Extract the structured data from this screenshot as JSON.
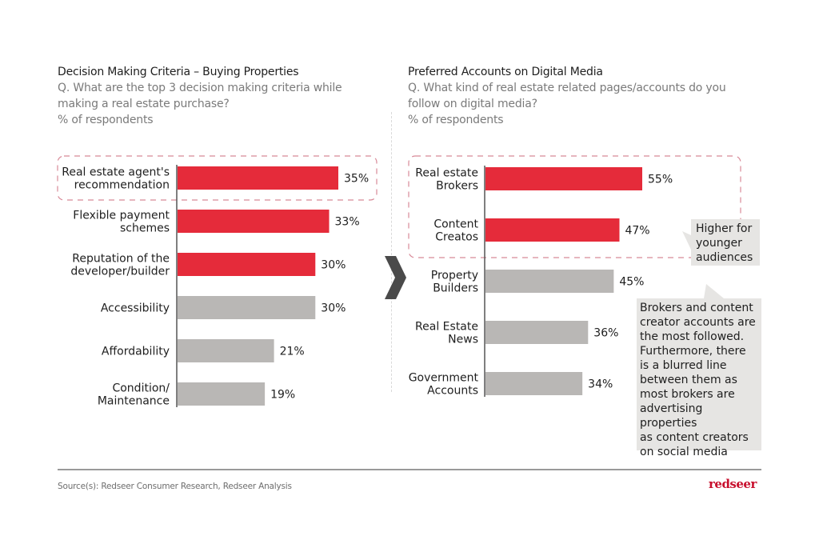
{
  "colors": {
    "highlight": "#e52b3a",
    "neutral": "#b9b7b5",
    "axis": "#555555",
    "dash_box": "#d88a98",
    "callout_bg": "#e6e5e3",
    "arrow": "#4a4a4a",
    "brand": "#c8102e"
  },
  "left_panel": {
    "title": "Decision Making Criteria – Buying Properties",
    "question": "Q. What are the top 3 decision making criteria while making a real estate purchase?",
    "unit": "% of respondents"
  },
  "right_panel": {
    "title": "Preferred Accounts on Digital Media",
    "question": "Q. What kind of real estate related pages/accounts do you follow on digital media?",
    "unit": "% of respondents"
  },
  "chart_data": [
    {
      "type": "bar",
      "orientation": "horizontal",
      "title": "Decision Making Criteria – Buying Properties",
      "xlabel": "% of respondents",
      "ylabel": "",
      "xlim": [
        0,
        35
      ],
      "grid": false,
      "categories": [
        [
          "Real estate agent's",
          "recommendation"
        ],
        [
          "Flexible payment",
          "schemes"
        ],
        [
          "Reputation of the",
          "developer/builder"
        ],
        [
          "Accessibility"
        ],
        [
          "Affordability"
        ],
        [
          "Condition/",
          "Maintenance"
        ]
      ],
      "values": [
        35,
        33,
        30,
        30,
        21,
        19
      ],
      "value_labels": [
        "35%",
        "33%",
        "30%",
        "30%",
        "21%",
        "19%"
      ],
      "highlighted": [
        true,
        true,
        true,
        false,
        false,
        false
      ],
      "highlight_box_rows": [
        0
      ]
    },
    {
      "type": "bar",
      "orientation": "horizontal",
      "title": "Preferred Accounts on Digital Media",
      "xlabel": "% of respondents",
      "ylabel": "",
      "xlim": [
        0,
        55
      ],
      "grid": false,
      "categories": [
        [
          "Real estate",
          "Brokers"
        ],
        [
          "Content",
          "Creatos"
        ],
        [
          "Property",
          "Builders"
        ],
        [
          "Real Estate",
          "News"
        ],
        [
          "Government",
          "Accounts"
        ]
      ],
      "values": [
        55,
        47,
        45,
        36,
        34
      ],
      "value_labels": [
        "55%",
        "47%",
        "45%",
        "36%",
        "34%"
      ],
      "highlighted": [
        true,
        true,
        false,
        false,
        false
      ],
      "highlight_box_rows": [
        0,
        1
      ],
      "annotations": [
        "Higher for younger audiences",
        "Brokers and content creator accounts are the most followed. Furthermore, there is a blurred line between them as most brokers are advertising properties as content creators on social media"
      ]
    }
  ],
  "callouts": {
    "younger": [
      "Higher for",
      "younger",
      "audiences"
    ],
    "brokers": [
      "Brokers and content",
      "creator accounts are",
      "the most followed.",
      "Furthermore, there",
      "is a blurred line",
      "between them as",
      "most brokers are",
      "advertising properties",
      "as content creators",
      "on social media"
    ]
  },
  "footer": {
    "source": "Source(s): Redseer Consumer Research, Redseer Analysis",
    "logo": "redseer"
  }
}
